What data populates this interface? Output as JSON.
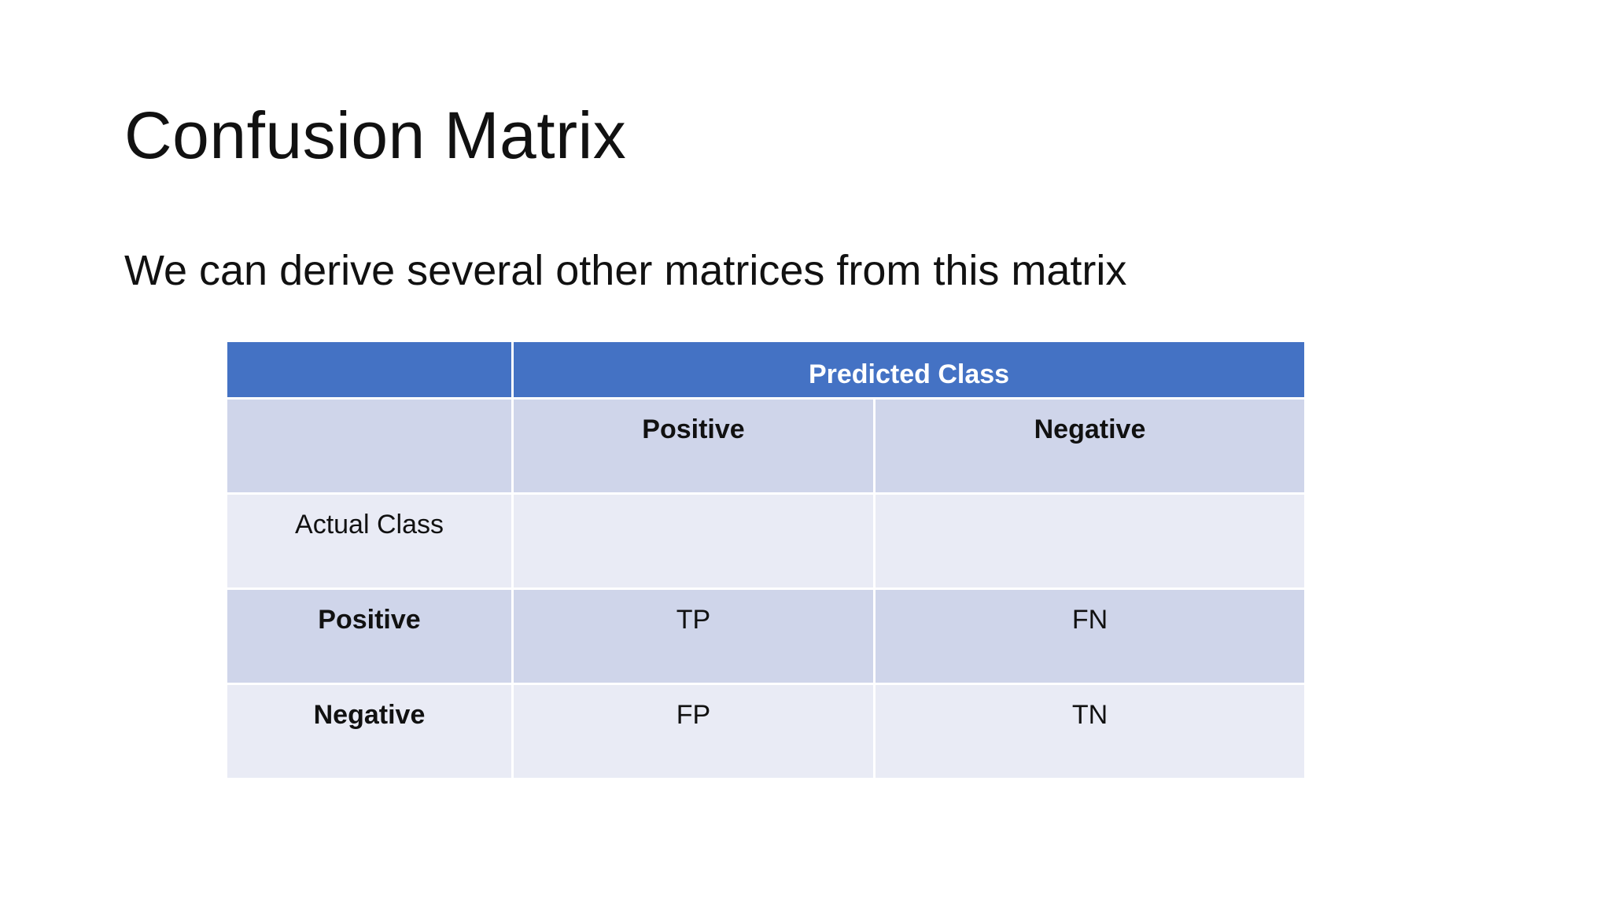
{
  "slide": {
    "title": "Confusion Matrix",
    "subtitle": "We can derive several other matrices from this matrix"
  },
  "matrix": {
    "predicted_header": "Predicted Class",
    "col_positive": "Positive",
    "col_negative": "Negative",
    "actual_label": "Actual Class",
    "rows": [
      {
        "label": "Positive",
        "positive": "TP",
        "negative": "FN"
      },
      {
        "label": "Negative",
        "positive": "FP",
        "negative": "TN"
      }
    ]
  },
  "colors": {
    "header_blue": "#4472c4",
    "band_dark": "#cfd5ea",
    "band_light": "#e9ebf5"
  }
}
